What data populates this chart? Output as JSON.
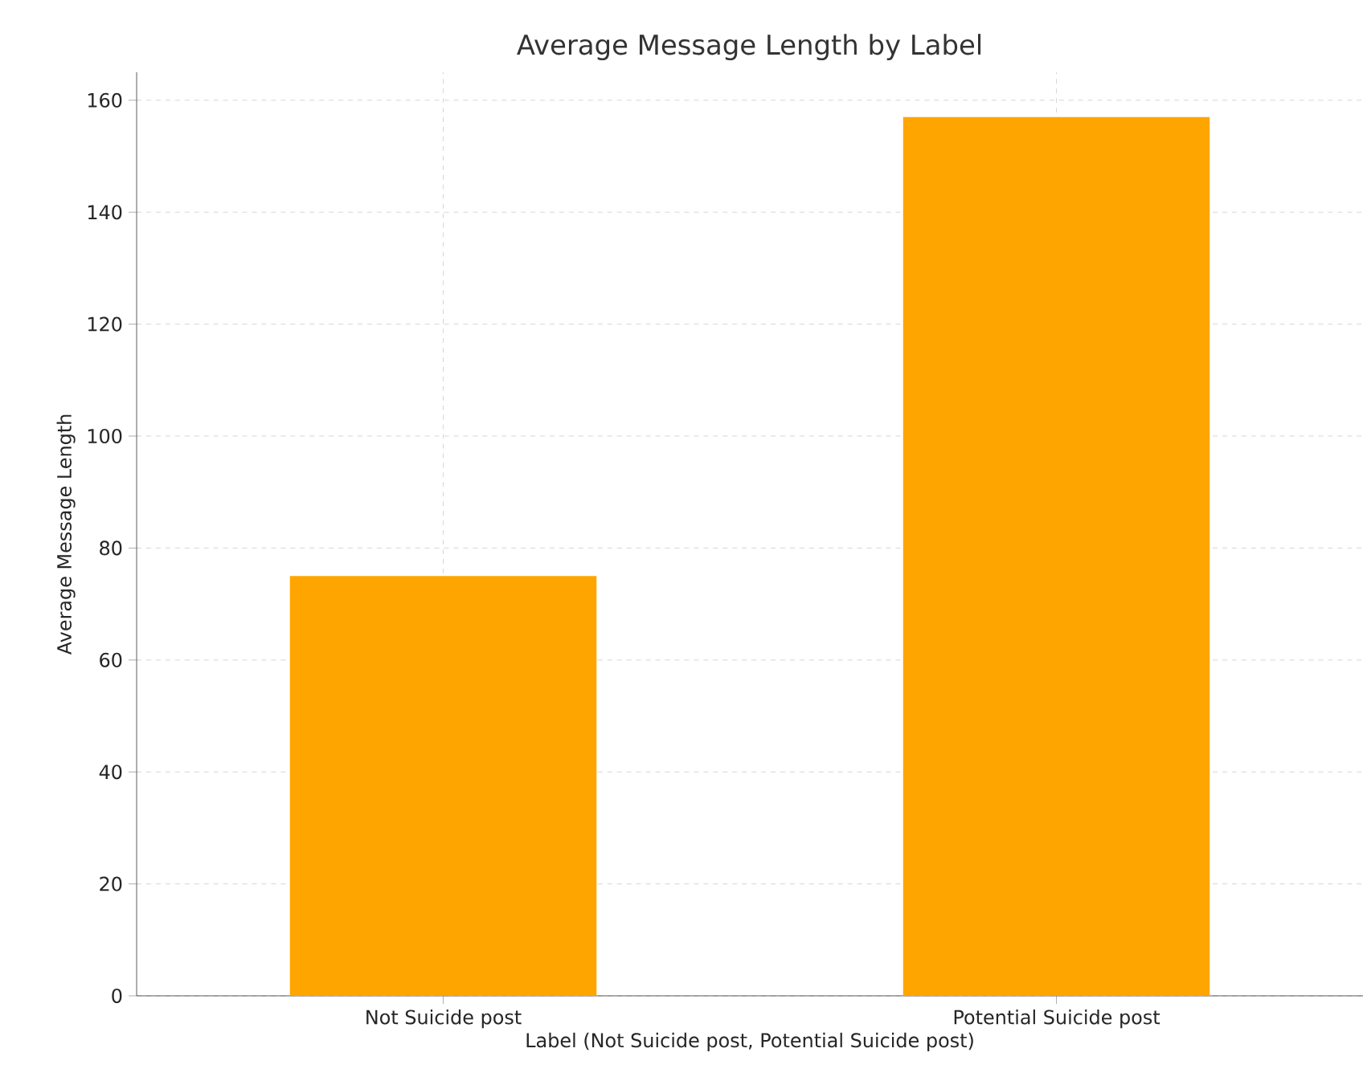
{
  "chart_data": {
    "type": "bar",
    "title": "Average Message Length by Label",
    "xlabel": "Label (Not Suicide post, Potential Suicide post)",
    "ylabel": "Average Message Length",
    "categories": [
      "Not Suicide post",
      "Potential Suicide post"
    ],
    "values": [
      75,
      157
    ],
    "color": "#ffa500",
    "ylim": [
      0,
      165
    ],
    "yticks": [
      0,
      20,
      40,
      60,
      80,
      100,
      120,
      140,
      160
    ],
    "grid": true
  }
}
